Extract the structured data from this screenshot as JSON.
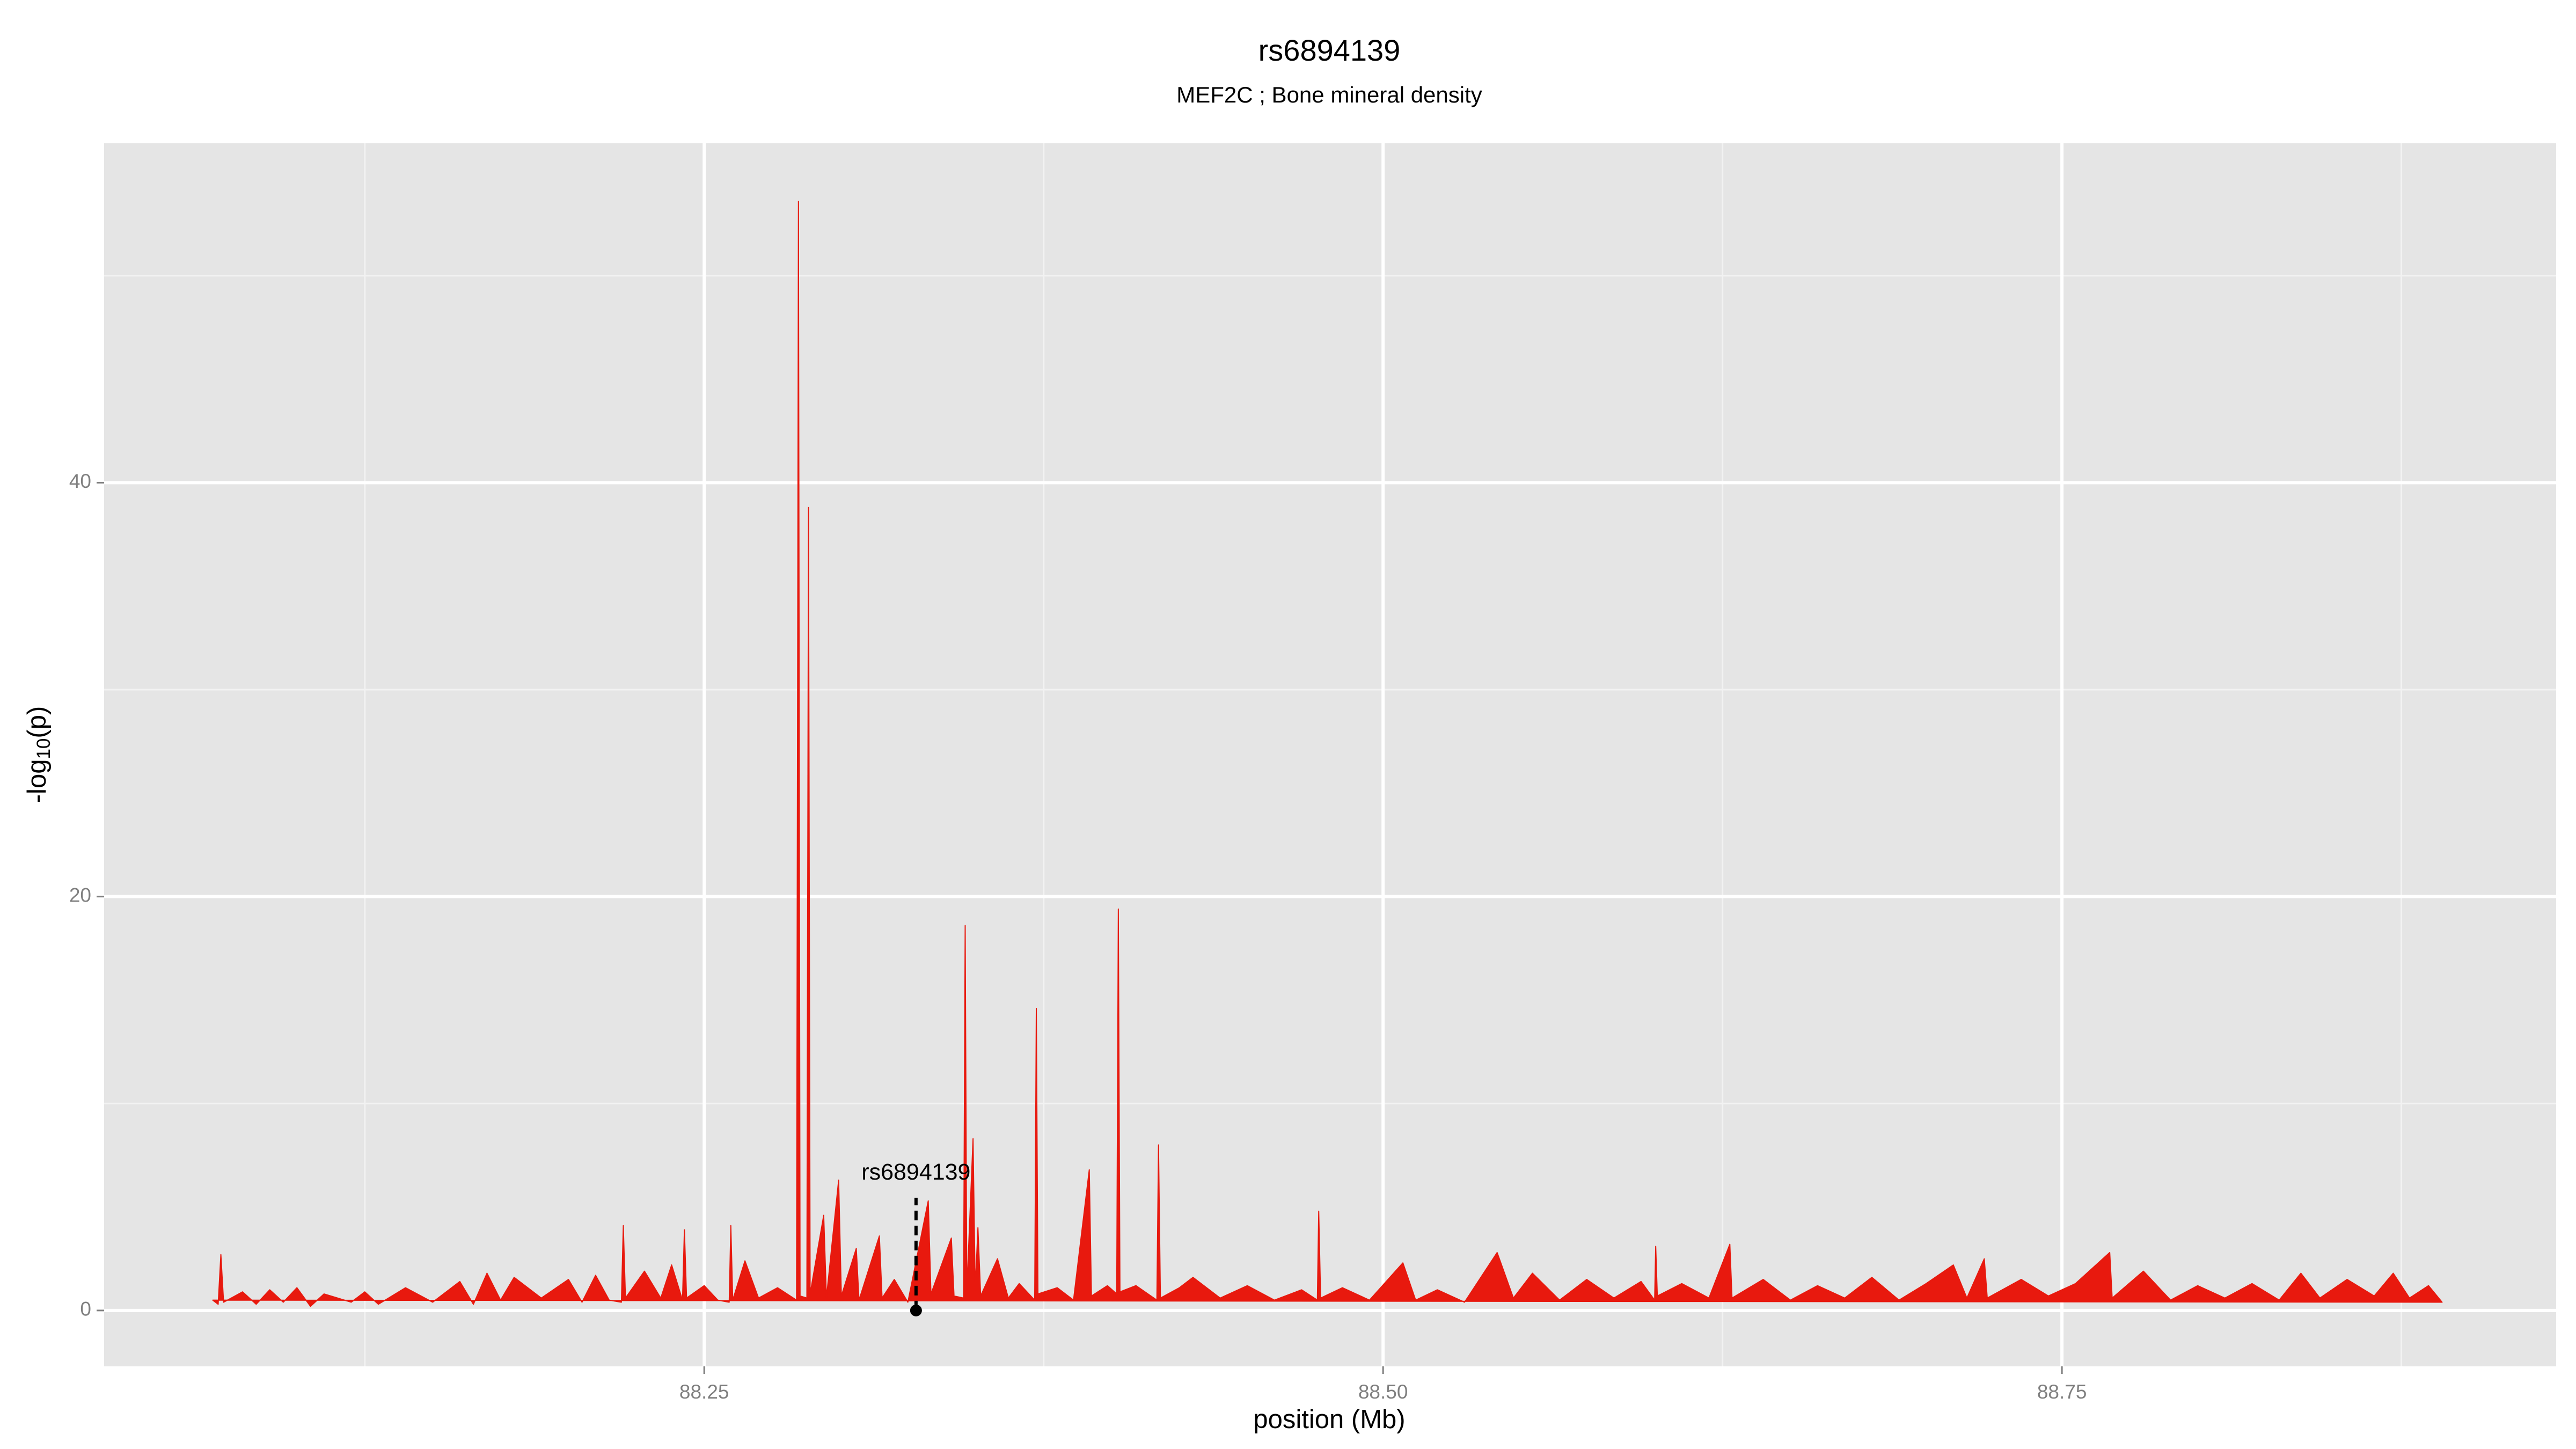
{
  "chart_data": {
    "type": "area",
    "title": "rs6894139",
    "subtitle": "MEF2C ; Bone mineral density",
    "xlabel": "position (Mb)",
    "ylabel": {
      "prefix": "-log",
      "sub": "10",
      "suffix": "(p)"
    },
    "color": "#e8190e",
    "xlim": [
      88.029,
      88.932
    ],
    "ylim": [
      -2.7,
      56.4
    ],
    "xticks": [
      {
        "value": 88.25,
        "label": "88.25"
      },
      {
        "value": 88.5,
        "label": "88.50"
      },
      {
        "value": 88.75,
        "label": "88.75"
      }
    ],
    "yticks": [
      0,
      20,
      40
    ],
    "xminor": [
      88.125,
      88.375,
      88.625,
      88.875
    ],
    "yminor": [
      10,
      30,
      50
    ],
    "grid": true,
    "annotation": {
      "text": "rs6894139",
      "x": 88.328,
      "y": 0
    },
    "x": [
      88.069,
      88.071,
      88.072,
      88.073,
      88.08,
      88.085,
      88.09,
      88.095,
      88.1,
      88.105,
      88.11,
      88.12,
      88.125,
      88.13,
      88.14,
      88.15,
      88.16,
      88.165,
      88.17,
      88.175,
      88.18,
      88.19,
      88.2,
      88.205,
      88.21,
      88.215,
      88.2195,
      88.2202,
      88.221,
      88.228,
      88.234,
      88.238,
      88.242,
      88.2427,
      88.2435,
      88.25,
      88.255,
      88.2592,
      88.2598,
      88.2605,
      88.265,
      88.27,
      88.277,
      88.284,
      88.2847,
      88.2853,
      88.2878,
      88.2884,
      88.289,
      88.294,
      88.295,
      88.2995,
      88.3005,
      88.306,
      88.307,
      88.3145,
      88.3155,
      88.32,
      88.325,
      88.3325,
      88.3335,
      88.341,
      88.342,
      88.3455,
      88.3461,
      88.3467,
      88.349,
      88.3498,
      88.3508,
      88.3518,
      88.358,
      88.362,
      88.366,
      88.3717,
      88.3723,
      88.3729,
      88.38,
      88.386,
      88.3918,
      88.3926,
      88.3985,
      88.4019,
      88.4025,
      88.4031,
      88.409,
      88.4167,
      88.4173,
      88.418,
      88.425,
      88.43,
      88.44,
      88.45,
      88.46,
      88.47,
      88.4758,
      88.4763,
      88.477,
      88.485,
      88.495,
      88.5073,
      88.512,
      88.52,
      88.53,
      88.542,
      88.548,
      88.555,
      88.565,
      88.575,
      88.585,
      88.595,
      88.6,
      88.6004,
      88.601,
      88.61,
      88.62,
      88.6277,
      88.6285,
      88.64,
      88.65,
      88.66,
      88.67,
      88.68,
      88.69,
      88.7,
      88.71,
      88.715,
      88.7214,
      88.7225,
      88.735,
      88.745,
      88.755,
      88.7676,
      88.7685,
      88.78,
      88.79,
      88.8,
      88.81,
      88.82,
      88.83,
      88.838,
      88.845,
      88.855,
      88.865,
      88.872,
      88.878,
      88.885,
      88.89
    ],
    "values": [
      0.5,
      0.3,
      2.7,
      0.4,
      0.9,
      0.3,
      1.0,
      0.4,
      1.1,
      0.2,
      0.8,
      0.4,
      0.9,
      0.3,
      1.1,
      0.4,
      1.4,
      0.3,
      1.8,
      0.5,
      1.6,
      0.6,
      1.5,
      0.4,
      1.7,
      0.5,
      0.4,
      4.1,
      0.6,
      1.9,
      0.6,
      2.2,
      0.5,
      3.9,
      0.6,
      1.2,
      0.5,
      0.4,
      4.1,
      0.5,
      2.4,
      0.6,
      1.1,
      0.5,
      53.6,
      0.7,
      0.6,
      38.8,
      0.8,
      4.6,
      0.6,
      6.3,
      0.7,
      3.0,
      0.5,
      3.6,
      0.6,
      1.5,
      0.4,
      5.3,
      0.8,
      3.5,
      0.7,
      0.6,
      18.6,
      0.9,
      8.3,
      1.0,
      4.0,
      0.7,
      2.5,
      0.6,
      1.3,
      0.5,
      14.6,
      0.8,
      1.1,
      0.5,
      6.8,
      0.7,
      1.2,
      0.8,
      19.4,
      0.9,
      1.2,
      0.5,
      8.0,
      0.6,
      1.1,
      1.6,
      0.6,
      1.2,
      0.5,
      1.0,
      0.5,
      4.8,
      0.6,
      1.1,
      0.5,
      2.3,
      0.5,
      1.0,
      0.4,
      2.8,
      0.6,
      1.8,
      0.5,
      1.5,
      0.6,
      1.4,
      0.5,
      3.1,
      0.7,
      1.3,
      0.6,
      3.2,
      0.6,
      1.5,
      0.5,
      1.2,
      0.6,
      1.6,
      0.5,
      1.3,
      2.2,
      0.6,
      2.5,
      0.6,
      1.5,
      0.7,
      1.3,
      2.8,
      0.6,
      1.9,
      0.5,
      1.2,
      0.6,
      1.3,
      0.5,
      1.8,
      0.6,
      1.5,
      0.7,
      1.8,
      0.6,
      1.2,
      0.4
    ]
  }
}
